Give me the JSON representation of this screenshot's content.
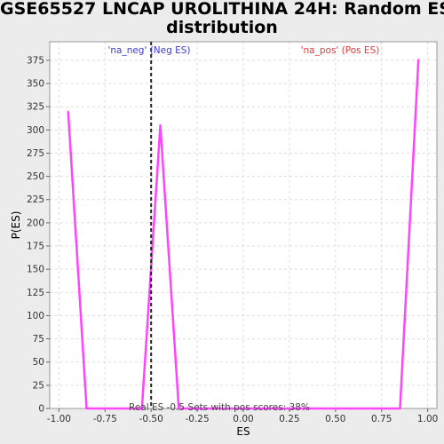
{
  "title_lines": [
    "GSE65527 LNCAP UROLITHINA 24H: Random ES",
    "distribution"
  ],
  "chart_data": {
    "type": "line",
    "title": "GSE65527 LNCAP UROLITHINA 24H: Random ES distribution",
    "xlabel": "ES",
    "ylabel": "P(ES)",
    "xlim": [
      -1.05,
      1.05
    ],
    "ylim": [
      0,
      395
    ],
    "x_ticks": [
      -1.0,
      -0.75,
      -0.5,
      -0.25,
      0.0,
      0.25,
      0.5,
      0.75,
      1.0
    ],
    "x_tick_labels": [
      "-1.00",
      "-0.75",
      "-0.50",
      "-0.25",
      "0.00",
      "0.25",
      "0.50",
      "0.75",
      "1.00"
    ],
    "y_ticks": [
      0,
      25,
      50,
      75,
      100,
      125,
      150,
      175,
      200,
      225,
      250,
      275,
      300,
      325,
      350,
      375
    ],
    "grid": true,
    "series": [
      {
        "color": "#ff44ff",
        "x": [
          -0.95,
          -0.85,
          -0.55,
          -0.45,
          -0.35,
          0.85,
          0.95
        ],
        "y": [
          320,
          0,
          0,
          305,
          0,
          0,
          376
        ]
      }
    ],
    "annotations": {
      "neg_label": "'na_neg' (Neg ES)",
      "neg_color": "#3b3bcc",
      "pos_label": "'na_pos' (Pos ES)",
      "pos_color": "#e03b3b",
      "real_es": -0.5,
      "bottom_text": "Real ES -0.5 Sets with pos scores: 38%"
    }
  }
}
